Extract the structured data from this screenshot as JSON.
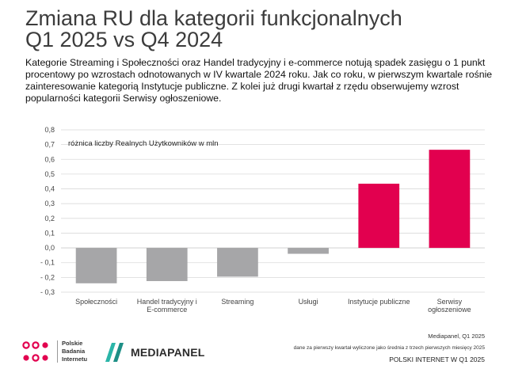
{
  "header": {
    "title_line1": "Zmiana RU dla kategorii funkcjonalnych",
    "title_line2": "Q1 2025 vs Q4 2024",
    "lead": "Kategorie Streaming i Społeczności oraz Handel tradycyjny i e-commerce notują spadek zasięgu o 1 punkt procentowy po wzrostach odnotowanych w IV kwartale 2024 roku. Jak co roku, w pierwszym kwartale rośnie zainteresowanie kategorią Instytucje publiczne. Z kolei już drugi kwartał z rzędu obserwujemy wzrost popularności kategorii Serwisy ogłoszeniowe."
  },
  "chart_data": {
    "type": "bar",
    "categories": [
      [
        "Społeczności"
      ],
      [
        "Handel tradycyjny i",
        "E-commerce"
      ],
      [
        "Streaming"
      ],
      [
        "Usługi"
      ],
      [
        "Instytucje publiczne"
      ],
      [
        "Serwisy",
        "ogłoszeniowe"
      ]
    ],
    "values": [
      -0.24,
      -0.225,
      -0.195,
      -0.04,
      0.435,
      0.665
    ],
    "bar_colors": [
      "#a6a6a8",
      "#a6a6a8",
      "#a6a6a8",
      "#a6a6a8",
      "#e2004f",
      "#e2004f"
    ],
    "unit_label": "różnica liczby Realnych Użytkowników w mln",
    "ylim": [
      -0.3,
      0.8
    ],
    "yticks": [
      -0.3,
      -0.2,
      -0.1,
      0.0,
      0.1,
      0.2,
      0.3,
      0.4,
      0.5,
      0.6,
      0.7,
      0.8
    ],
    "ytick_labels": [
      "- 0,3",
      "- 0,2",
      "- 0,1",
      "0,0",
      "0,1",
      "0,2",
      "0,3",
      "0,4",
      "0,5",
      "0,6",
      "0,7",
      "0,8"
    ],
    "grid": true,
    "legend": "none"
  },
  "footer": {
    "source": "Mediapanel, Q1 2025",
    "note": "dane za pierwszy kwartał wyliczone jako średnia z trzech pierwszych miesięcy 2025",
    "report": "POLSKI INTERNET W Q1 2025"
  },
  "logos": {
    "pbi_line1": "Polskie",
    "pbi_line2": "Badania",
    "pbi_line3": "Internetu",
    "pbi_color": "#e2004f",
    "mediapanel": "MEDIAPANEL",
    "mediapanel_color": "#2bb5a8"
  }
}
